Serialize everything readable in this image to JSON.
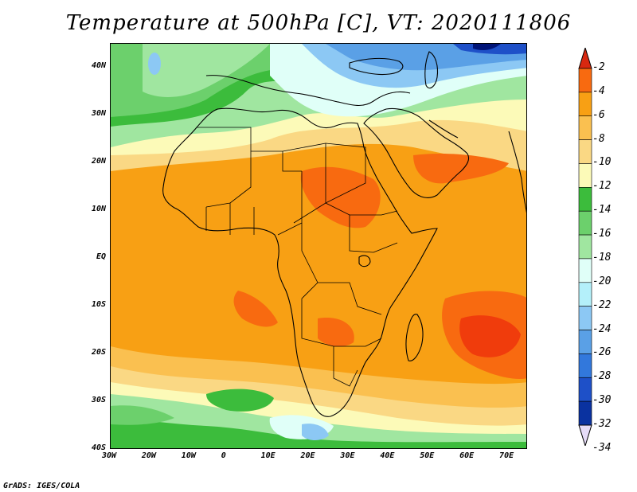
{
  "title": "Temperature at 500hPa [C], VT: 2020111806",
  "credit": "GrADS: IGES/COLA",
  "lat_labels": [
    "40N",
    "30N",
    "20N",
    "10N",
    "EQ",
    "10S",
    "20S",
    "30S",
    "40S"
  ],
  "lon_labels": [
    "30W",
    "20W",
    "10W",
    "0",
    "10E",
    "20E",
    "30E",
    "40E",
    "50E",
    "60E",
    "70E"
  ],
  "colorbar": {
    "labels": [
      "-2",
      "-4",
      "-6",
      "-8",
      "-10",
      "-12",
      "-14",
      "-16",
      "-18",
      "-20",
      "-22",
      "-24",
      "-26",
      "-28",
      "-30",
      "-32",
      "-34"
    ],
    "colors": [
      "#f03c0c",
      "#f86a10",
      "#f8a014",
      "#fac050",
      "#fad884",
      "#fcfab8",
      "#3cbc3c",
      "#6cd06c",
      "#a0e6a0",
      "#e0fff8",
      "#b4f0fa",
      "#8cc8f4",
      "#5aa0e6",
      "#3278dc",
      "#1e50c8",
      "#0a32a0",
      "#001478"
    ],
    "top_triangle_color": "#d82810",
    "bottom_triangle_color": "#e6dcf8"
  },
  "map": {
    "lon_range": [
      -30,
      75
    ],
    "lat_range": [
      -40,
      45
    ],
    "colors": {
      "very_warm": "#f03c0c",
      "warm": "#f86a10",
      "orange": "#f8a014",
      "light_orange": "#fac050",
      "tan": "#fad884",
      "pale_yellow": "#fcfab8",
      "green": "#3cbc3c",
      "mid_green": "#6cd06c",
      "light_green": "#a0e6a0",
      "pale_cyan": "#e0fff8",
      "light_blue": "#8cc8f4",
      "blue": "#5aa0e6",
      "dark_blue": "#1e50c8",
      "navy": "#001478"
    }
  }
}
